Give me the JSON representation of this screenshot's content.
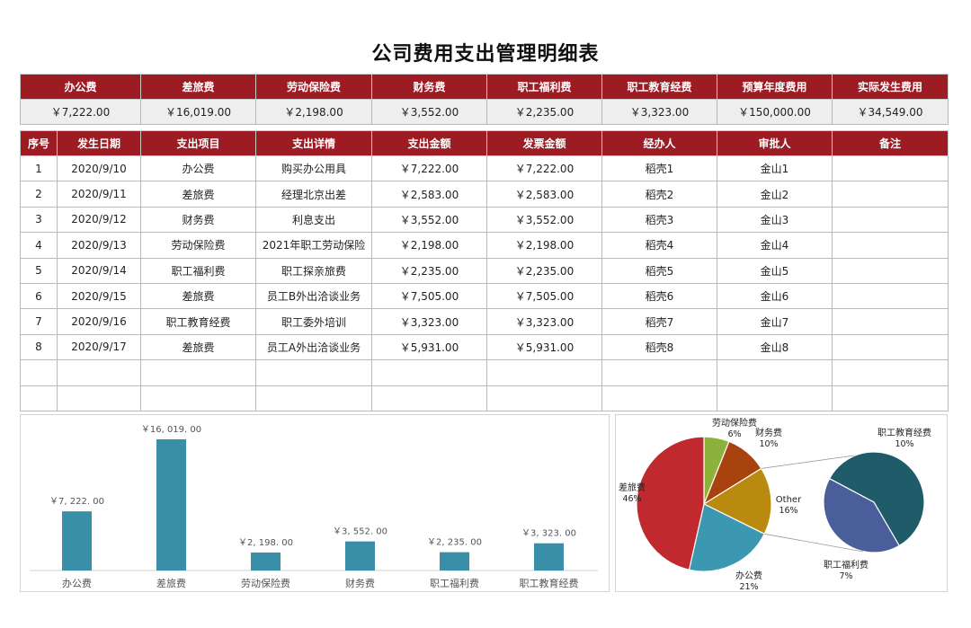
{
  "title": "公司费用支出管理明细表",
  "summary": {
    "headers": [
      "办公费",
      "差旅费",
      "劳动保险费",
      "财务费",
      "职工福利费",
      "职工教育经费",
      "预算年度费用",
      "实际发生费用"
    ],
    "values": [
      "￥7,222.00",
      "￥16,019.00",
      "￥2,198.00",
      "￥3,552.00",
      "￥2,235.00",
      "￥3,323.00",
      "￥150,000.00",
      "￥34,549.00"
    ]
  },
  "detail": {
    "headers": [
      "序号",
      "发生日期",
      "支出项目",
      "支出详情",
      "支出金额",
      "发票金额",
      "经办人",
      "审批人",
      "备注"
    ],
    "rows": [
      [
        "1",
        "2020/9/10",
        "办公费",
        "购买办公用具",
        "￥7,222.00",
        "￥7,222.00",
        "稻壳1",
        "金山1",
        ""
      ],
      [
        "2",
        "2020/9/11",
        "差旅费",
        "经理北京出差",
        "￥2,583.00",
        "￥2,583.00",
        "稻壳2",
        "金山2",
        ""
      ],
      [
        "3",
        "2020/9/12",
        "财务费",
        "利息支出",
        "￥3,552.00",
        "￥3,552.00",
        "稻壳3",
        "金山3",
        ""
      ],
      [
        "4",
        "2020/9/13",
        "劳动保险费",
        "2021年职工劳动保险",
        "￥2,198.00",
        "￥2,198.00",
        "稻壳4",
        "金山4",
        ""
      ],
      [
        "5",
        "2020/9/14",
        "职工福利费",
        "职工探亲旅费",
        "￥2,235.00",
        "￥2,235.00",
        "稻壳5",
        "金山5",
        ""
      ],
      [
        "6",
        "2020/9/15",
        "差旅费",
        "员工B外出洽谈业务",
        "￥7,505.00",
        "￥7,505.00",
        "稻壳6",
        "金山6",
        ""
      ],
      [
        "7",
        "2020/9/16",
        "职工教育经费",
        "职工委外培训",
        "￥3,323.00",
        "￥3,323.00",
        "稻壳7",
        "金山7",
        ""
      ],
      [
        "8",
        "2020/9/17",
        "差旅费",
        "员工A外出洽谈业务",
        "￥5,931.00",
        "￥5,931.00",
        "稻壳8",
        "金山8",
        ""
      ],
      [
        "",
        "",
        "",
        "",
        "",
        "",
        "",
        "",
        ""
      ],
      [
        "",
        "",
        "",
        "",
        "",
        "",
        "",
        "",
        ""
      ]
    ]
  },
  "colors": {
    "header_bg": "#9d1c24",
    "bar": "#3a8fa8",
    "pie": {
      "差旅费": "#c0292d",
      "劳动保险费": "#8cb23c",
      "财务费": "#a8420f",
      "Other": "#b98a0e",
      "办公费": "#3c97b0",
      "职工教育经费": "#1f5b68",
      "职工福利费": "#4a5e9c"
    }
  },
  "chart_data": [
    {
      "type": "bar",
      "categories": [
        "办公费",
        "差旅费",
        "劳动保险费",
        "财务费",
        "职工福利费",
        "职工教育经费"
      ],
      "values": [
        7222,
        16019,
        2198,
        3552,
        2235,
        3323
      ],
      "data_labels": [
        "￥7, 222. 00",
        "￥16, 019. 00",
        "￥2, 198. 00",
        "￥3, 552. 00",
        "￥2, 235. 00",
        "￥3, 323. 00"
      ],
      "ylim": [
        0,
        18000
      ]
    },
    {
      "type": "pie",
      "subtype": "pie-of-pie",
      "slices": [
        {
          "name": "劳动保险费",
          "percent": "6%",
          "value": 6
        },
        {
          "name": "财务费",
          "percent": "10%",
          "value": 10
        },
        {
          "name": "Other",
          "percent": "16%",
          "value": 16
        },
        {
          "name": "办公费",
          "percent": "21%",
          "value": 21
        },
        {
          "name": "差旅费",
          "percent": "46%",
          "value": 46
        }
      ],
      "secondary_slices": [
        {
          "name": "职工教育经费",
          "percent": "10%",
          "value": 10
        },
        {
          "name": "职工福利费",
          "percent": "7%",
          "value": 7
        }
      ]
    }
  ]
}
